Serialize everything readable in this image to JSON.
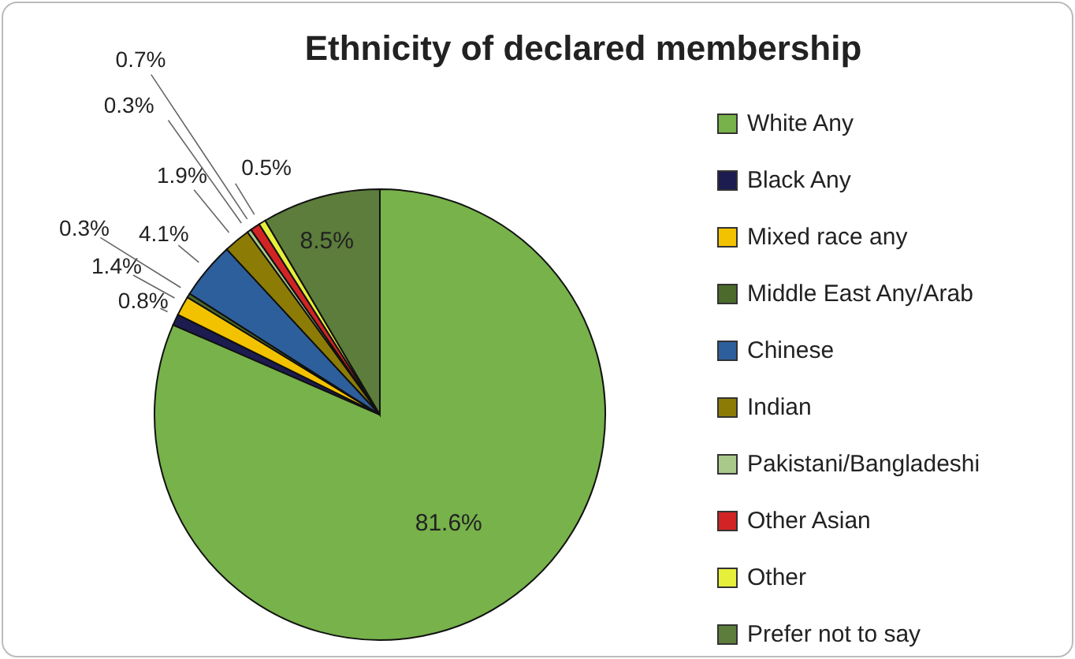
{
  "chart_data": {
    "type": "pie",
    "title": "Ethnicity of declared membership",
    "categories": [
      "White Any",
      "Black Any",
      "Mixed race any",
      "Middle East Any/Arab",
      "Chinese",
      "Indian",
      "Pakistani/Bangladeshi",
      "Other Asian",
      "Other",
      "Prefer not to say"
    ],
    "values": [
      81.6,
      0.8,
      1.4,
      0.3,
      4.1,
      1.9,
      0.3,
      0.7,
      0.5,
      8.5
    ],
    "value_labels": [
      "81.6%",
      "0.8%",
      "1.4%",
      "0.3%",
      "4.1%",
      "1.9%",
      "0.3%",
      "0.7%",
      "0.5%",
      "8.5%"
    ],
    "colors": [
      "#77b24a",
      "#1c1c50",
      "#f2c200",
      "#4b6a2c",
      "#2d5f9c",
      "#8c7c06",
      "#a9c98a",
      "#d22424",
      "#e6ef3a",
      "#5c7d3b"
    ],
    "legend": "right"
  }
}
